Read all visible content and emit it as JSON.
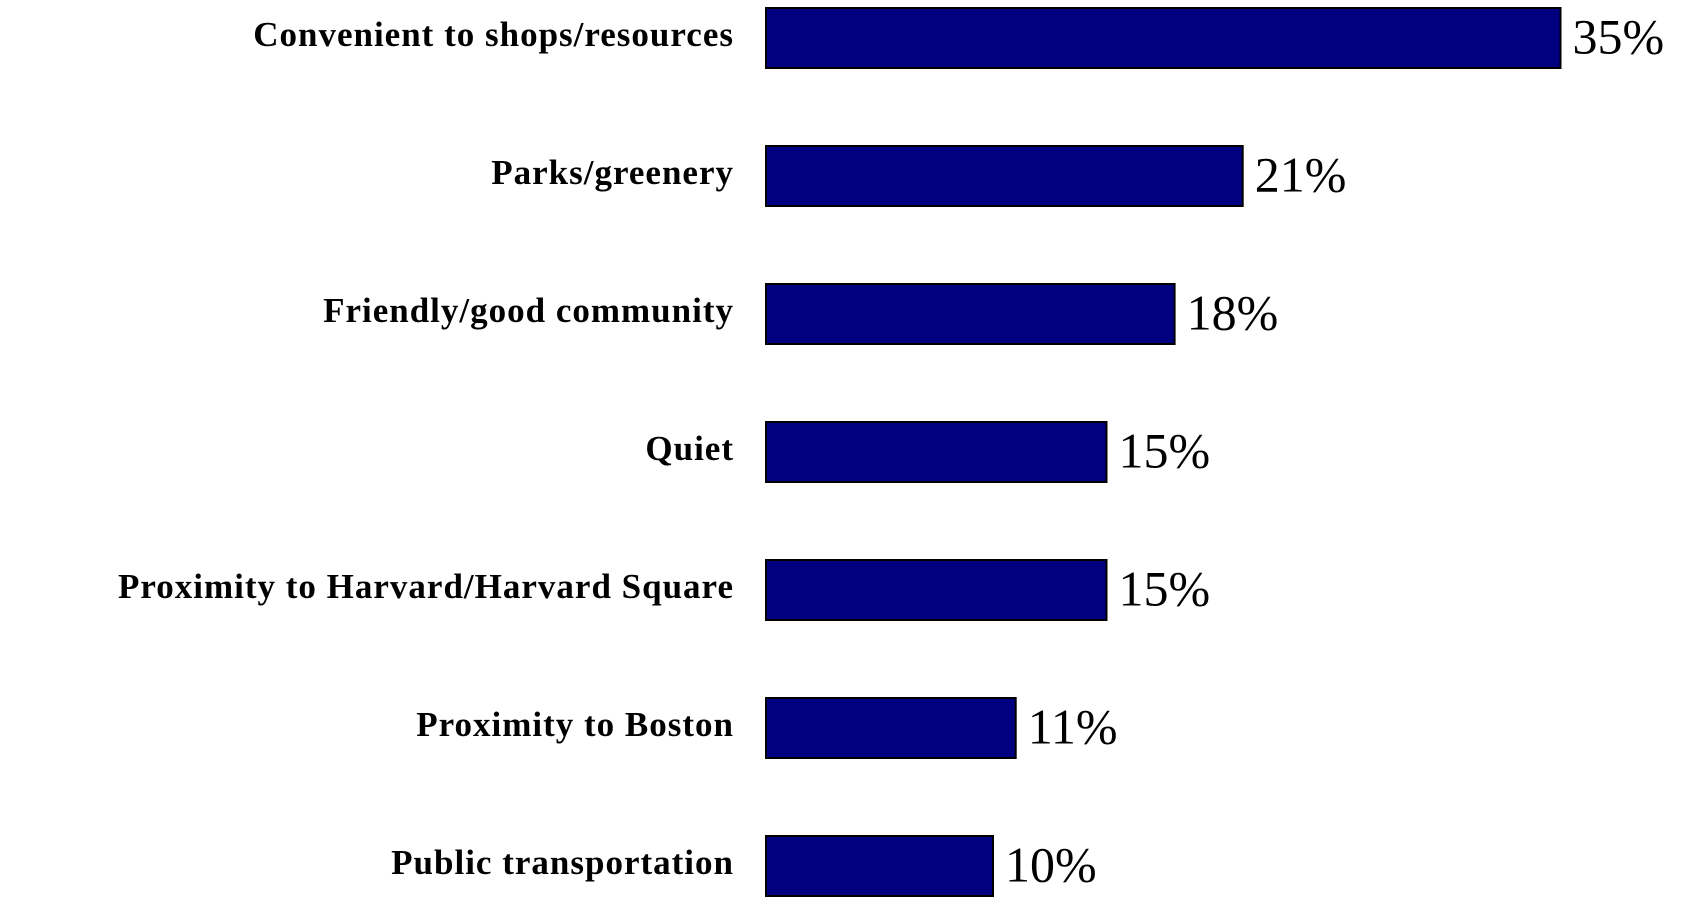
{
  "chart_data": {
    "type": "bar",
    "orientation": "horizontal",
    "categories": [
      "Convenient to shops/resources",
      "Parks/greenery",
      "Friendly/good community",
      "Quiet",
      "Proximity to Harvard/Harvard Square",
      "Proximity to Boston",
      "Public transportation"
    ],
    "values": [
      35,
      21,
      18,
      15,
      15,
      11,
      10
    ],
    "value_labels": [
      "35%",
      "21%",
      "18%",
      "15%",
      "15%",
      "11%",
      "10%"
    ],
    "color": "#000080"
  }
}
